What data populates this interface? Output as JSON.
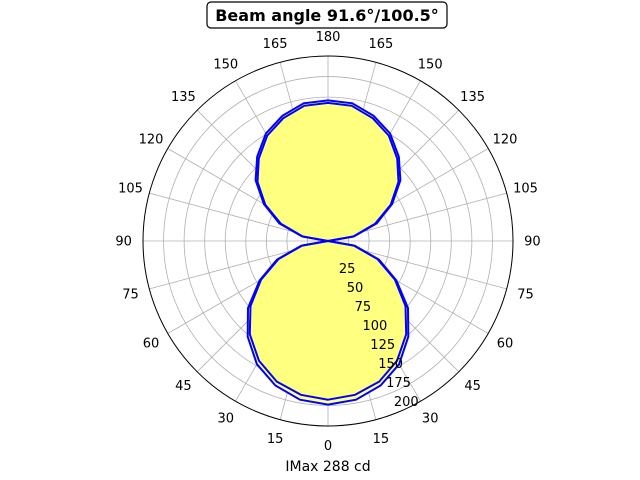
{
  "chart_data": {
    "type": "polar",
    "title": "Beam angle 91.6°/100.5°",
    "xlabel": "IMax 288 cd",
    "angle_tick_labels": [
      "0",
      "15",
      "30",
      "45",
      "60",
      "75",
      "90",
      "105",
      "120",
      "135",
      "150",
      "165",
      "180",
      "165",
      "150",
      "135",
      "120",
      "105",
      "90",
      "75",
      "60",
      "45",
      "30",
      "15"
    ],
    "radial_ticks": [
      25,
      50,
      75,
      100,
      125,
      150,
      175,
      200
    ],
    "rlim": [
      0,
      225
    ],
    "grid": true,
    "colors": {
      "outline": "#0000ff",
      "fill": "#ffff80",
      "grid": "#b0b0b0"
    },
    "series": [
      {
        "angle_deg": [
          0,
          10,
          20,
          30,
          40,
          50,
          60,
          70,
          80,
          90,
          100,
          110,
          120,
          130,
          140,
          150,
          160,
          170,
          180,
          -170,
          -160,
          -150,
          -140,
          -130,
          -120,
          -110,
          -100,
          -90,
          -80,
          -70,
          -60,
          -50,
          -40,
          -30,
          -20,
          -10
        ],
        "values": [
          199,
          196,
          187,
          173,
          152,
          127,
          96,
          66,
          33,
          0,
          32,
          63,
          90,
          115,
          134,
          151,
          162,
          170,
          171,
          170,
          162,
          151,
          134,
          115,
          90,
          63,
          32,
          0,
          33,
          66,
          96,
          127,
          152,
          173,
          187,
          196
        ]
      },
      {
        "angle_deg": [
          0,
          10,
          20,
          30,
          40,
          50,
          60,
          70,
          80,
          90,
          100,
          110,
          120,
          130,
          140,
          150,
          160,
          170,
          180,
          -170,
          -160,
          -150,
          -140,
          -130,
          -120,
          -110,
          -100,
          -90,
          -80,
          -70,
          -60,
          -50,
          -40,
          -30,
          -20,
          -10
        ],
        "values": [
          193,
          190,
          182,
          168,
          148,
          123,
          94,
          64,
          32,
          0,
          31,
          61,
          88,
          112,
          131,
          148,
          159,
          167,
          168,
          167,
          159,
          148,
          131,
          112,
          88,
          61,
          31,
          0,
          32,
          64,
          94,
          123,
          148,
          168,
          182,
          190
        ]
      }
    ]
  }
}
